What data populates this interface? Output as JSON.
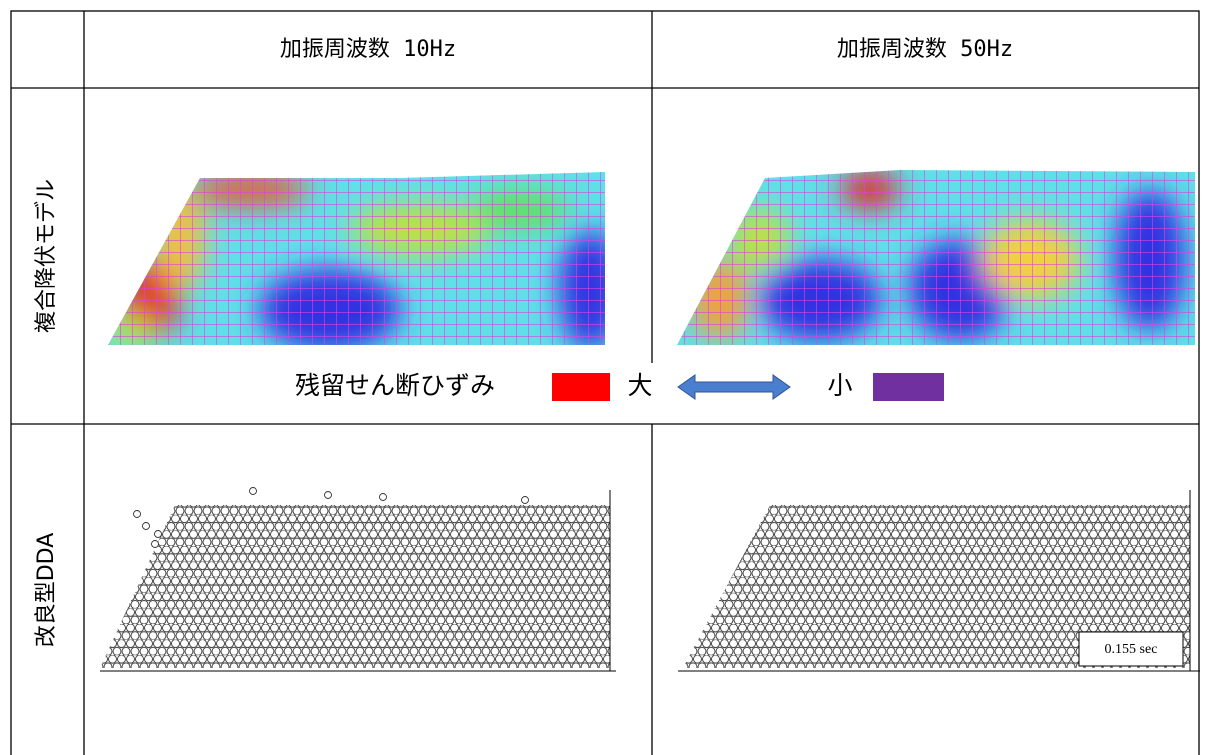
{
  "header": {
    "columns": [
      "加振周波数 10Hz",
      "加振周波数 50Hz"
    ]
  },
  "rows": [
    {
      "label": "複合降伏モデル",
      "legend": {
        "title": "残留せん断ひずみ",
        "large": "大",
        "small": "小"
      }
    },
    {
      "label": "改良型DDA",
      "annotation": "0.155 sec"
    }
  ]
}
